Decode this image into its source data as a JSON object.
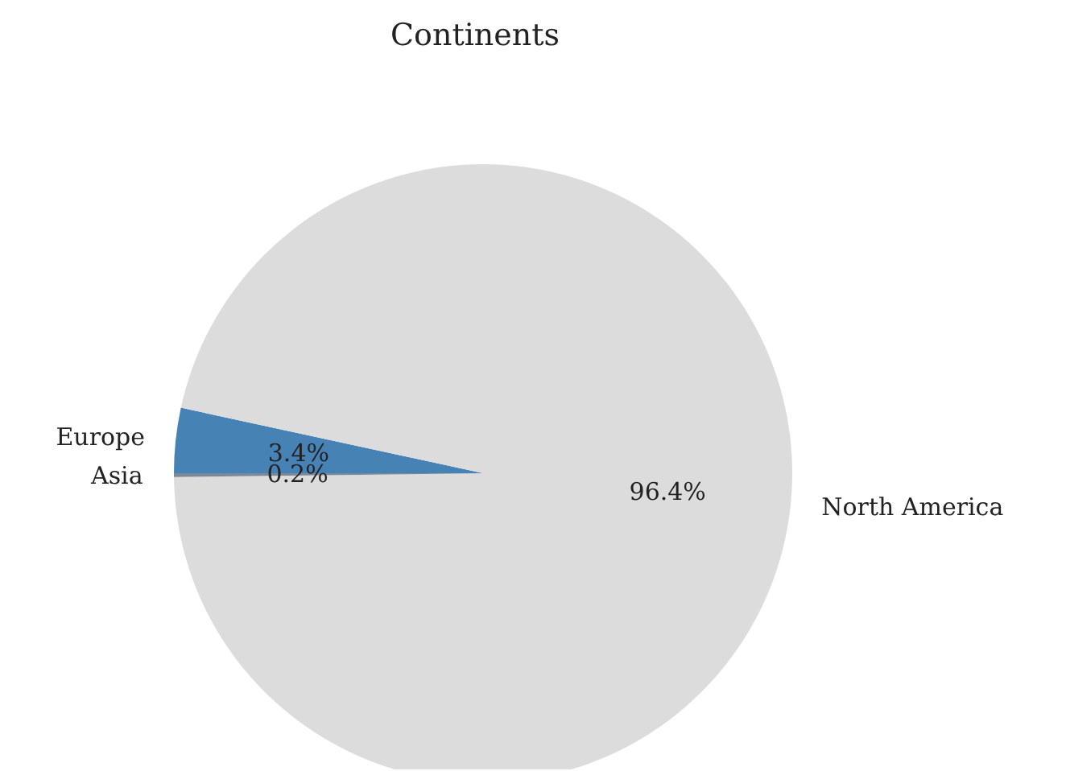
{
  "chart_data": {
    "type": "pie",
    "title": "Continents",
    "categories": [
      "Europe",
      "North America",
      "Asia"
    ],
    "values": [
      3.4,
      96.4,
      0.2
    ],
    "colors": [
      "#4682b4",
      "#dcdcdc",
      "#7a8a99"
    ],
    "value_labels": [
      "3.4%",
      "96.4%",
      "0.2%"
    ]
  }
}
